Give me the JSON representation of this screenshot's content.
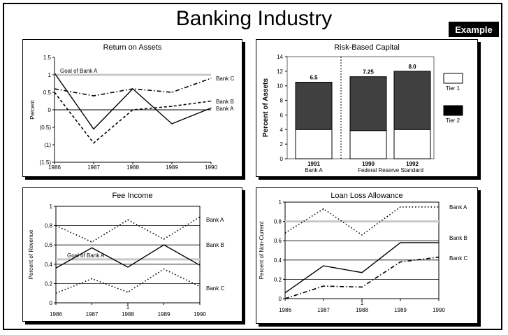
{
  "header": {
    "title": "Banking Industry",
    "badge": "Example"
  },
  "colors": {
    "goal_line": "#c8c8c8",
    "tier2_fill": "#404040",
    "tier1_fill": "#ffffff"
  },
  "chart_data": [
    {
      "id": "roa",
      "type": "line",
      "title": "Return on Assets",
      "ylabel": "Percent",
      "x": [
        "1986",
        "1987",
        "1988",
        "1989",
        "1990"
      ],
      "ylim": [
        -1.5,
        1.5
      ],
      "ytick_labels": [
        "1.5",
        "1",
        "0.5",
        "0",
        "(0.5)",
        "(1)",
        "(1.5)"
      ],
      "series": [
        {
          "name": "Bank A",
          "style": "solid",
          "values": [
            1.05,
            -0.55,
            0.6,
            -0.4,
            0.05
          ]
        },
        {
          "name": "Bank B",
          "style": "dashed",
          "values": [
            0.5,
            -0.95,
            0.0,
            0.1,
            0.25
          ]
        },
        {
          "name": "Bank C",
          "style": "dashdot",
          "values": [
            0.6,
            0.4,
            0.6,
            0.5,
            0.9
          ]
        }
      ],
      "goal": {
        "label": "Goal of Bank A",
        "value": 1.0
      },
      "zero_line": true
    },
    {
      "id": "rbc",
      "type": "bar",
      "title": "Risk-Based Capital",
      "ylabel": "Percent of Assets",
      "ylim": [
        0,
        14
      ],
      "yticks": [
        "0",
        "2",
        "4",
        "6",
        "8",
        "10",
        "12",
        "14"
      ],
      "bars": [
        {
          "year": "1991",
          "group": "Bank A",
          "total": 10.5,
          "tier1": 4.0,
          "label": "6.5"
        },
        {
          "year": "1990",
          "group": "Federal Reserve Standard",
          "total": 11.25,
          "tier1": 3.85,
          "label": "7.25"
        },
        {
          "year": "1992",
          "group": "",
          "total": 12.0,
          "tier1": 4.0,
          "label": "8.0"
        }
      ],
      "legend": [
        {
          "name": "Tier 1",
          "fill": "#ffffff"
        },
        {
          "name": "Tier 2",
          "fill": "#000000"
        }
      ]
    },
    {
      "id": "fee",
      "type": "line",
      "title": "Fee Income",
      "ylabel": "Percent of Revenue",
      "x": [
        "1986",
        "1987",
        "1988",
        "1989",
        "1990"
      ],
      "x_extra_label": "1",
      "ylim": [
        0,
        1
      ],
      "yticks": [
        "0",
        "0.2",
        "0.4",
        "0.6",
        "0.8",
        "1"
      ],
      "series": [
        {
          "name": "Bank A",
          "style": "solid",
          "values": [
            0.36,
            0.57,
            0.37,
            0.6,
            0.39
          ]
        },
        {
          "name": "Bank B",
          "style": "dotted",
          "values": [
            0.8,
            0.63,
            0.86,
            0.66,
            0.89
          ]
        },
        {
          "name": "Bank C",
          "style": "dotted",
          "values": [
            0.1,
            0.25,
            0.11,
            0.35,
            0.17
          ]
        }
      ],
      "goal": {
        "label": "Goal of Bank A",
        "value": 0.45
      }
    },
    {
      "id": "llr",
      "type": "line",
      "title": "Loan Loss Allowance",
      "ylabel": "Percent of Non-Current",
      "x": [
        "1986",
        "1987",
        "1988",
        "1989",
        "1990"
      ],
      "x_extra_label": "1",
      "ylim": [
        0,
        1
      ],
      "yticks": [
        "0",
        "0.2",
        "0.4",
        "0.6",
        "0.8",
        "1"
      ],
      "series": [
        {
          "name": "Bank A",
          "style": "solid",
          "values": [
            0.06,
            0.34,
            0.27,
            0.58,
            0.58
          ]
        },
        {
          "name": "Bank B",
          "style": "dotted",
          "values": [
            0.68,
            0.93,
            0.66,
            0.95,
            0.95
          ]
        },
        {
          "name": "Bank C",
          "style": "dashdot",
          "values": [
            0.0,
            0.13,
            0.12,
            0.38,
            0.43
          ]
        }
      ],
      "goal": {
        "label": "",
        "value": 0.8
      }
    }
  ]
}
